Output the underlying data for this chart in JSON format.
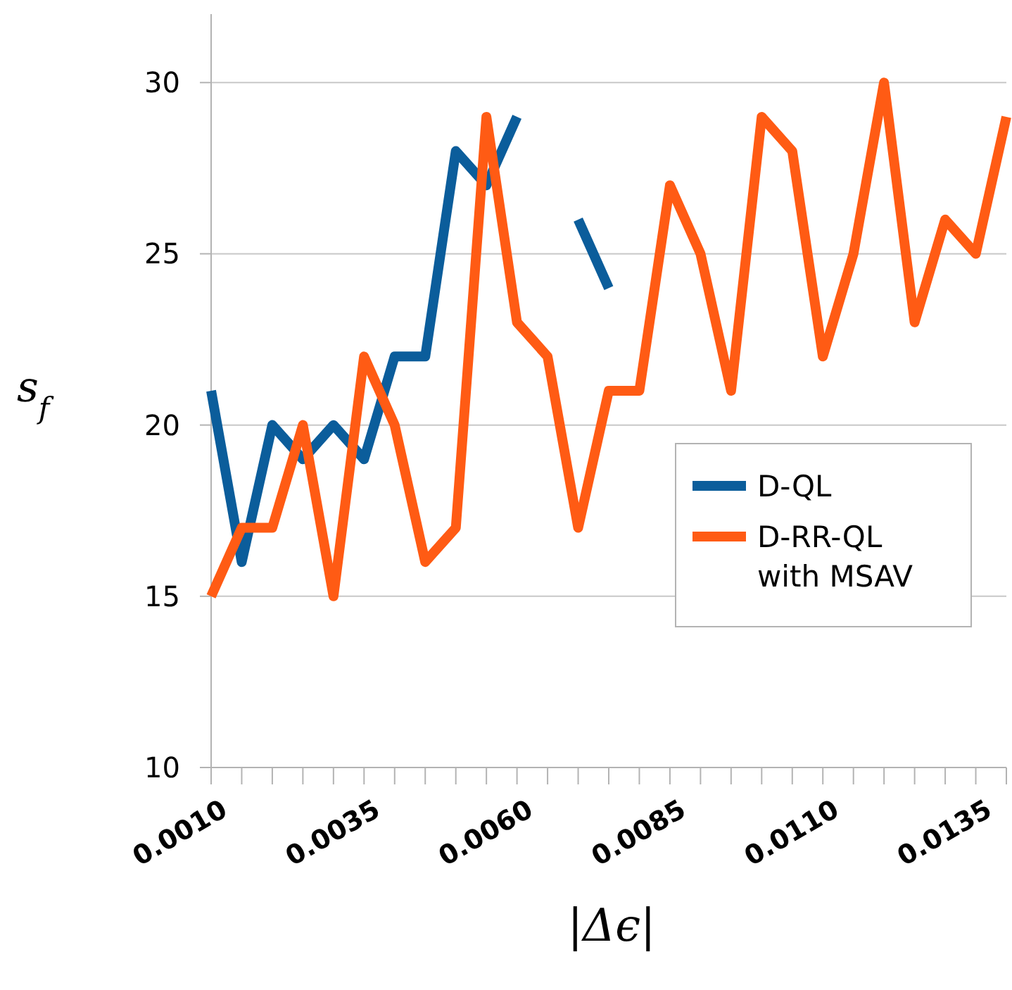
{
  "chart_data": {
    "type": "line",
    "xlabel": "|Δϵ|",
    "ylabel": "s$_{f}$",
    "x": [
      0.001,
      0.0015,
      0.002,
      0.0025,
      0.003,
      0.0035,
      0.004,
      0.0045,
      0.005,
      0.0055,
      0.006,
      0.0065,
      0.007,
      0.0075,
      0.008,
      0.0085,
      0.009,
      0.0095,
      0.01,
      0.0105,
      0.011,
      0.0115,
      0.012,
      0.0125,
      0.013,
      0.0135,
      0.014
    ],
    "series": [
      {
        "name": "D-QL",
        "color": "#0b5d9b",
        "values": [
          21,
          16,
          20,
          19,
          20,
          19,
          22,
          22,
          28,
          27,
          29,
          null,
          26,
          24,
          null,
          null,
          null,
          null,
          null,
          null,
          null,
          null,
          null,
          null,
          null,
          null,
          null
        ]
      },
      {
        "name": "D-RR-QL with MSAV",
        "color": "#ff5b14",
        "values": [
          15,
          17,
          17,
          20,
          15,
          22,
          20,
          16,
          17,
          29,
          23,
          22,
          17,
          21,
          21,
          27,
          25,
          21,
          29,
          28,
          22,
          25,
          30,
          23,
          26,
          25,
          29
        ]
      }
    ],
    "xlim": [
      0.001,
      0.014
    ],
    "ylim": [
      10,
      32
    ],
    "yticks": [
      10,
      15,
      20,
      25,
      30
    ],
    "xticks": [
      {
        "value": 0.001,
        "label": "0.0010"
      },
      {
        "value": 0.0015,
        "label": null
      },
      {
        "value": 0.002,
        "label": null
      },
      {
        "value": 0.0025,
        "label": null
      },
      {
        "value": 0.003,
        "label": null
      },
      {
        "value": 0.0035,
        "label": "0.0035"
      },
      {
        "value": 0.004,
        "label": null
      },
      {
        "value": 0.0045,
        "label": null
      },
      {
        "value": 0.005,
        "label": null
      },
      {
        "value": 0.0055,
        "label": null
      },
      {
        "value": 0.006,
        "label": "0.0060"
      },
      {
        "value": 0.0065,
        "label": null
      },
      {
        "value": 0.007,
        "label": null
      },
      {
        "value": 0.0075,
        "label": null
      },
      {
        "value": 0.008,
        "label": null
      },
      {
        "value": 0.0085,
        "label": "0.0085"
      },
      {
        "value": 0.009,
        "label": null
      },
      {
        "value": 0.0095,
        "label": null
      },
      {
        "value": 0.01,
        "label": null
      },
      {
        "value": 0.0105,
        "label": null
      },
      {
        "value": 0.011,
        "label": "0.0110"
      },
      {
        "value": 0.0115,
        "label": null
      },
      {
        "value": 0.012,
        "label": null
      },
      {
        "value": 0.0125,
        "label": null
      },
      {
        "value": 0.013,
        "label": null
      },
      {
        "value": 0.0135,
        "label": "0.0135"
      },
      {
        "value": 0.014,
        "label": null
      }
    ],
    "grid": "y",
    "legend": "right",
    "line_style": "solid"
  }
}
